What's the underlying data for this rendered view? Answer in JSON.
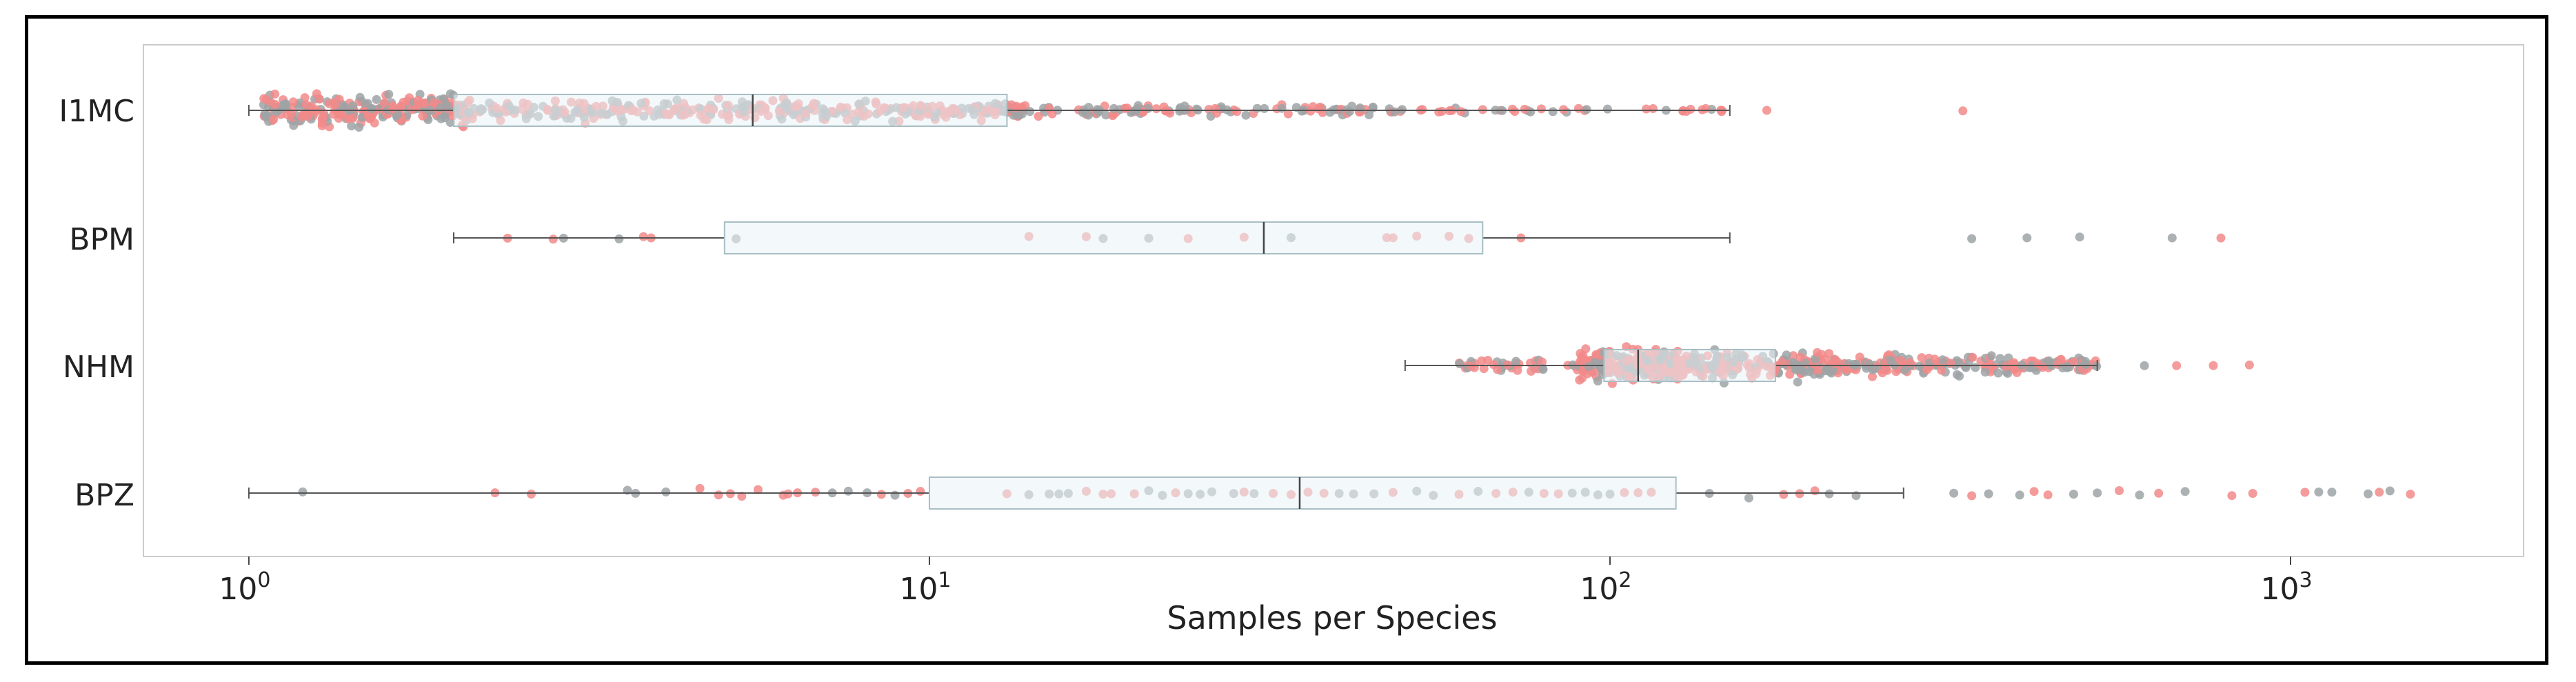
{
  "chart_data": {
    "type": "box-swarm",
    "xlabel": "Samples per Species",
    "xscale": "log",
    "xlim": [
      0.7,
      2200
    ],
    "x_ticks": [
      {
        "base": "10",
        "exp": "0",
        "value": 1
      },
      {
        "base": "10",
        "exp": "1",
        "value": 10
      },
      {
        "base": "10",
        "exp": "2",
        "value": 100
      },
      {
        "base": "10",
        "exp": "3",
        "value": 1000
      }
    ],
    "categories": [
      "I1MC",
      "BPM",
      "NHM",
      "BPZ"
    ],
    "series_colors": {
      "a": "#f28a8a",
      "b": "#9da3a6"
    },
    "box_fill": "#eaf3f5",
    "box_stroke": "#a9bec4",
    "boxes": [
      {
        "name": "I1MC",
        "whisker_low": 1,
        "q1": 2,
        "median": 5.5,
        "q3": 13,
        "whisker_high": 150,
        "outliers": [
          170,
          330
        ]
      },
      {
        "name": "BPM",
        "whisker_low": 2,
        "q1": 5,
        "median": 31,
        "q3": 65,
        "whisker_high": 150,
        "points": [
          2.4,
          2.8,
          2.9,
          3.5,
          3.8,
          3.9,
          5.2,
          14,
          17,
          18,
          21,
          24,
          29,
          34,
          47,
          48,
          52,
          58,
          62,
          74,
          340,
          410,
          490,
          670,
          790
        ]
      },
      {
        "name": "NHM",
        "whisker_low": 50,
        "q1": 98,
        "median": 110,
        "q3": 175,
        "whisker_high": 520,
        "outliers": [
          610,
          680,
          770,
          870
        ]
      },
      {
        "name": "BPZ",
        "whisker_low": 1,
        "q1": 10,
        "median": 35,
        "q3": 125,
        "whisker_high": 270,
        "points": [
          1.2,
          2.3,
          2.6,
          3.6,
          3.7,
          4.1,
          4.6,
          4.9,
          5.1,
          5.3,
          5.6,
          6.1,
          6.2,
          6.4,
          6.8,
          7.2,
          7.6,
          8.1,
          8.5,
          8.9,
          9.3,
          9.7,
          13,
          14,
          15,
          15.5,
          16,
          17,
          18,
          18.5,
          20,
          21,
          22,
          23,
          24,
          25,
          26,
          28,
          29,
          30,
          32,
          34,
          36,
          38,
          40,
          42,
          45,
          48,
          52,
          55,
          60,
          64,
          68,
          72,
          76,
          80,
          84,
          88,
          92,
          96,
          100,
          105,
          110,
          115,
          140,
          160,
          180,
          190,
          200,
          210,
          230,
          320,
          340,
          360,
          400,
          420,
          440,
          480,
          520,
          560,
          600,
          640,
          700,
          820,
          880,
          1050,
          1100,
          1150,
          1300,
          1350,
          1400,
          1500
        ]
      }
    ]
  }
}
